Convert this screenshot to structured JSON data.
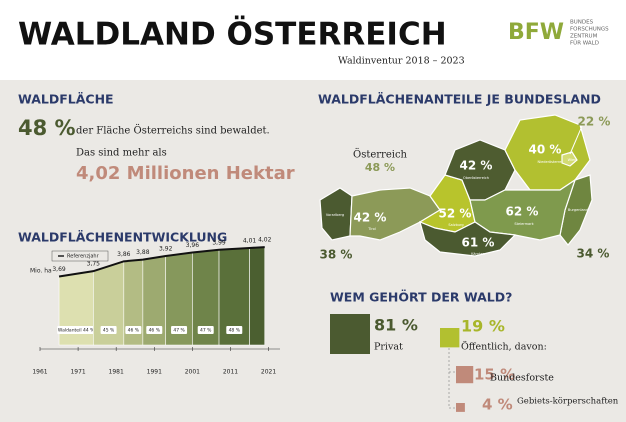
{
  "header": {
    "title": "WALDLAND ÖSTERREICH",
    "subtitle": "Waldinventur 2018 – 2023",
    "logo": "BFW",
    "logo_lines": [
      "BUNDES",
      "FORSCHUNGS",
      "ZENTRUM",
      "FÜR WALD"
    ]
  },
  "forest_area": {
    "heading": "WALDFLÄCHE",
    "share": "48 %",
    "share_text": "der Fläche Österreichs sind bewaldet.",
    "more_text": "Das sind mehr als",
    "amount": "4,02 Millionen Hektar"
  },
  "chart_data": {
    "type": "area",
    "title": "WALDFLÄCHENENTWICKLUNG",
    "y_label": "Mio. ha",
    "legend": "Referenzjahr",
    "x": [
      1966,
      1975,
      1983,
      1988,
      1994,
      2001,
      2008,
      2016,
      2020
    ],
    "values": [
      3.69,
      3.75,
      3.86,
      3.88,
      3.92,
      3.96,
      3.99,
      4.01,
      4.02
    ],
    "value_labels": [
      "3,69",
      "3,75",
      "3,86",
      "3,88",
      "3,92",
      "3,96",
      "3,99",
      "4,01",
      "4,02"
    ],
    "band_labels": [
      "Waldanteil 44 %",
      "45 %",
      "46 %",
      "46 %",
      "47 %",
      "47 %",
      "48 %"
    ],
    "xlim": [
      1961,
      2024
    ],
    "ylim": [
      2.92,
      4.1
    ],
    "xticks": [
      1961,
      1971,
      1981,
      1991,
      2001,
      2011,
      2021
    ]
  },
  "map": {
    "heading": "WALDFLÄCHENANTEILE JE BUNDESLAND",
    "country": "Österreich",
    "country_share": "48 %",
    "regions": [
      {
        "name": "Vorarlberg",
        "label": "38 %",
        "color": "#4b5a30"
      },
      {
        "name": "Tirol",
        "label": "42 %",
        "color": "#8c9a58"
      },
      {
        "name": "Salzburg",
        "label": "52 %",
        "color": "#b8c42c"
      },
      {
        "name": "Oberösterreich",
        "label": "42 %",
        "color": "#4e5c30"
      },
      {
        "name": "Niederösterreich",
        "label": "40 %",
        "color": "#b2c030"
      },
      {
        "name": "Wien",
        "label": "22 %",
        "color": "#d3db73"
      },
      {
        "name": "Burgenland",
        "label": "34 %",
        "color": "#6f8640"
      },
      {
        "name": "Steiermark",
        "label": "62 %",
        "color": "#7f9a4d"
      },
      {
        "name": "Kärnten",
        "label": "61 %",
        "color": "#4b5a30"
      }
    ]
  },
  "ownership": {
    "heading": "WEM GEHÖRT DER WALD?",
    "items": [
      {
        "value": 81,
        "label": "81 %",
        "name": "Privat",
        "color": "#4b5a30"
      },
      {
        "value": 19,
        "label": "19 %",
        "name": "Öffentlich, davon:",
        "color": "#b2c030"
      },
      {
        "value": 15,
        "label": "15 %",
        "name": "Bundesforste",
        "color": "#c08a7a"
      },
      {
        "value": 4,
        "label": "4 %",
        "name": "Gebiets-körperschaften",
        "color": "#c08a7a"
      }
    ]
  }
}
